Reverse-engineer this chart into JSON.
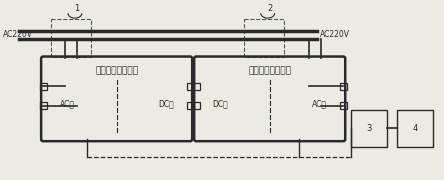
{
  "bg_color": "#ede9e3",
  "line_color": "#2a2a2a",
  "ac220v_left": "AC220V",
  "ac220v_right": "AC220V",
  "label1": "1",
  "label2": "2",
  "label3": "3",
  "label4": "4",
  "box1_title": "第一电源转换装置",
  "box1_left": "AC侧",
  "box1_right": "DC侧",
  "box2_title": "第二电源转换装置",
  "box2_left": "DC侧",
  "box2_right": "AC侧"
}
